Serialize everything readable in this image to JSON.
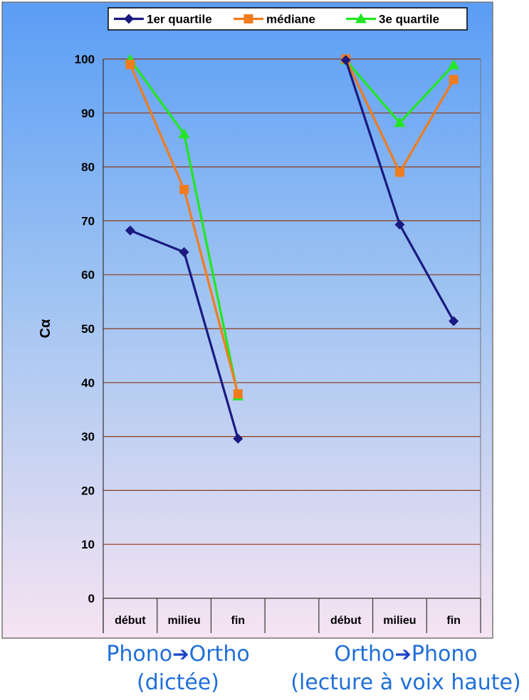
{
  "chart_data": {
    "type": "line",
    "ylabel": "Cα",
    "ylim": [
      0,
      100
    ],
    "yticks": [
      0,
      10,
      20,
      30,
      40,
      50,
      60,
      70,
      80,
      90,
      100
    ],
    "grid": true,
    "legend_position": "top",
    "categories": [
      "début",
      "milieu",
      "fin",
      "",
      "début",
      "milieu",
      "fin"
    ],
    "series": [
      {
        "name": "1er quartile",
        "color": "#1a1a80",
        "marker": "diamond",
        "values": [
          68.2,
          64.2,
          29.6,
          null,
          99.8,
          69.3,
          51.4
        ]
      },
      {
        "name": "médiane",
        "color": "#f07c1e",
        "marker": "square",
        "values": [
          99.0,
          75.8,
          37.9,
          null,
          100.0,
          79.0,
          96.2
        ]
      },
      {
        "name": "3e quartile",
        "color": "#22e622",
        "marker": "triangle",
        "values": [
          99.9,
          86.1,
          37.5,
          null,
          99.8,
          88.2,
          98.9
        ]
      }
    ]
  },
  "groups": [
    {
      "line1_a": "Phono",
      "line1_b": "Ortho",
      "line2": "(dictée)"
    },
    {
      "line1_a": "Ortho",
      "line1_b": "Phono",
      "line2": "(lecture à voix haute)"
    }
  ]
}
